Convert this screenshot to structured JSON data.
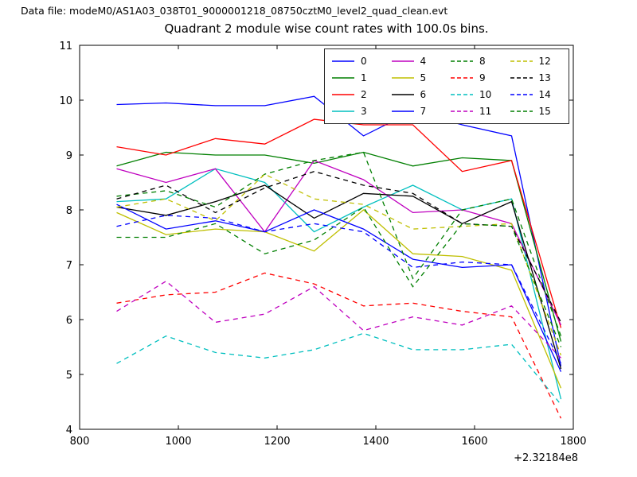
{
  "header": {
    "datafile_label": "Data file: modeM0/AS1A03_038T01_9000001218_08750cztM0_level2_quad_clean.evt"
  },
  "chart_data": {
    "type": "line",
    "title": "Quadrant 2 module wise count rates with 100.0s bins.",
    "xlabel": "",
    "ylabel": "",
    "xlim": [
      800,
      1800
    ],
    "ylim": [
      4,
      11
    ],
    "xticks": [
      800,
      1000,
      1200,
      1400,
      1600,
      1800
    ],
    "yticks": [
      4,
      5,
      6,
      7,
      8,
      9,
      10,
      11
    ],
    "x_offset_label": "+2.32184e8",
    "grid": false,
    "legend_position": "upper right",
    "legend_columns": 4,
    "x": [
      875,
      975,
      1075,
      1175,
      1275,
      1375,
      1475,
      1575,
      1675,
      1775
    ],
    "series": [
      {
        "name": "0",
        "color": "#0000ff",
        "dash": false,
        "values": [
          9.92,
          9.95,
          9.9,
          9.9,
          10.07,
          9.35,
          9.8,
          9.55,
          9.35,
          5.15
        ]
      },
      {
        "name": "1",
        "color": "#007f00",
        "dash": false,
        "values": [
          8.8,
          9.05,
          9.0,
          9.0,
          8.85,
          9.05,
          8.8,
          8.95,
          8.9,
          5.6
        ]
      },
      {
        "name": "2",
        "color": "#ff0000",
        "dash": false,
        "values": [
          9.15,
          9.0,
          9.3,
          9.2,
          9.65,
          9.55,
          9.55,
          8.7,
          8.9,
          5.85
        ]
      },
      {
        "name": "3",
        "color": "#00bfbf",
        "dash": false,
        "values": [
          8.15,
          8.2,
          8.75,
          8.5,
          7.6,
          8.05,
          8.45,
          8.0,
          8.2,
          4.55
        ]
      },
      {
        "name": "4",
        "color": "#bf00bf",
        "dash": false,
        "values": [
          8.75,
          8.5,
          8.75,
          7.6,
          8.9,
          8.55,
          7.95,
          8.0,
          7.75,
          5.9
        ]
      },
      {
        "name": "5",
        "color": "#bfbf00",
        "dash": false,
        "values": [
          7.95,
          7.55,
          7.65,
          7.6,
          7.25,
          8.0,
          7.2,
          7.15,
          6.9,
          4.75
        ]
      },
      {
        "name": "6",
        "color": "#000000",
        "dash": false,
        "values": [
          8.05,
          7.9,
          8.15,
          8.45,
          7.85,
          8.3,
          8.25,
          7.75,
          8.15,
          5.1
        ]
      },
      {
        "name": "7",
        "color": "#0000ff",
        "dash": false,
        "values": [
          8.1,
          7.65,
          7.8,
          7.6,
          8.0,
          7.65,
          7.1,
          6.95,
          7.0,
          5.05
        ]
      },
      {
        "name": "8",
        "color": "#007f00",
        "dash": true,
        "values": [
          8.25,
          8.35,
          8.05,
          8.65,
          8.9,
          9.05,
          6.75,
          8.0,
          8.2,
          5.7
        ]
      },
      {
        "name": "9",
        "color": "#ff0000",
        "dash": true,
        "values": [
          6.3,
          6.45,
          6.5,
          6.85,
          6.65,
          6.25,
          6.3,
          6.15,
          6.05,
          4.2
        ]
      },
      {
        "name": "10",
        "color": "#00bfbf",
        "dash": true,
        "values": [
          5.2,
          5.7,
          5.4,
          5.3,
          5.45,
          5.75,
          5.45,
          5.45,
          5.55,
          4.45
        ]
      },
      {
        "name": "11",
        "color": "#bf00bf",
        "dash": true,
        "values": [
          6.15,
          6.7,
          5.95,
          6.1,
          6.6,
          5.8,
          6.05,
          5.9,
          6.25,
          5.3
        ]
      },
      {
        "name": "12",
        "color": "#bfbf00",
        "dash": true,
        "values": [
          8.05,
          8.2,
          7.8,
          8.65,
          8.2,
          8.1,
          7.65,
          7.7,
          7.75,
          5.35
        ]
      },
      {
        "name": "13",
        "color": "#000000",
        "dash": true,
        "values": [
          8.2,
          8.45,
          7.95,
          8.4,
          8.7,
          8.45,
          8.3,
          7.75,
          7.7,
          5.95
        ]
      },
      {
        "name": "14",
        "color": "#0000ff",
        "dash": true,
        "values": [
          7.7,
          7.9,
          7.85,
          7.6,
          7.75,
          7.6,
          6.95,
          7.05,
          7.0,
          5.2
        ]
      },
      {
        "name": "15",
        "color": "#007f00",
        "dash": true,
        "values": [
          7.5,
          7.5,
          7.75,
          7.2,
          7.45,
          8.05,
          6.6,
          7.75,
          7.7,
          5.5
        ]
      }
    ]
  }
}
